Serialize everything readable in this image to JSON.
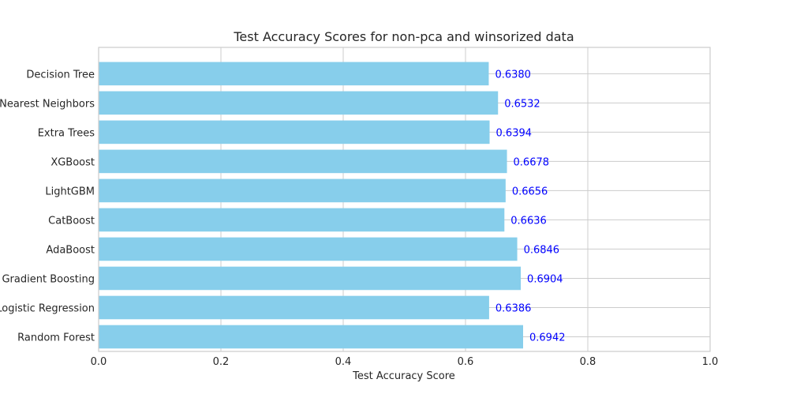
{
  "chart_data": {
    "type": "bar",
    "orientation": "horizontal",
    "title": "Test Accuracy Scores for non-pca and winsorized data",
    "xlabel": "Test Accuracy Score",
    "ylabel": "",
    "xlim": [
      0.0,
      1.0
    ],
    "xticks": [
      "0.0",
      "0.2",
      "0.4",
      "0.6",
      "0.8",
      "1.0"
    ],
    "grid": true,
    "categories": [
      "Decision Tree",
      "K-Nearest Neighbors",
      "Extra Trees",
      "XGBoost",
      "LightGBM",
      "CatBoost",
      "AdaBoost",
      "Gradient Boosting",
      "Logistic Regression",
      "Random Forest"
    ],
    "values": [
      0.638,
      0.6532,
      0.6394,
      0.6678,
      0.6656,
      0.6636,
      0.6846,
      0.6904,
      0.6386,
      0.6942
    ],
    "value_labels": [
      "0.6380",
      "0.6532",
      "0.6394",
      "0.6678",
      "0.6656",
      "0.6636",
      "0.6846",
      "0.6904",
      "0.6386",
      "0.6942"
    ],
    "bar_color": "#87ceeb",
    "label_color": "#0000ff",
    "grid_color": "#cccccc",
    "axis_color": "#cccccc",
    "text_color": "#262626"
  }
}
